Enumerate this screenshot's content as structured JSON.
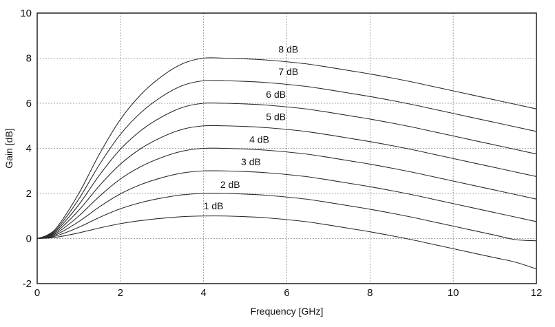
{
  "chart_data": {
    "type": "line",
    "title": "",
    "xlabel": "Frequency [GHz]",
    "ylabel": "Gain [dB]",
    "xlim": [
      0,
      12
    ],
    "ylim": [
      -2,
      10
    ],
    "xticks": [
      0,
      2,
      4,
      6,
      8,
      10,
      12
    ],
    "yticks": [
      -2,
      0,
      2,
      4,
      6,
      8,
      10
    ],
    "xtick_labels": [
      "0",
      "2",
      "4",
      "6",
      "8",
      "10",
      "12"
    ],
    "ytick_labels": [
      "-2",
      "0",
      "2",
      "4",
      "6",
      "8",
      "10"
    ],
    "grid": true,
    "series": [
      {
        "name": "1 dB",
        "label": "1 dB",
        "label_at": [
          4.0,
          1.3
        ],
        "x": [
          0,
          0.25,
          0.5,
          1,
          1.5,
          2,
          2.5,
          3,
          3.5,
          4,
          4.5,
          5,
          5.5,
          6,
          6.5,
          7,
          7.5,
          8,
          8.5,
          9,
          9.5,
          10,
          10.5,
          11,
          11.5,
          12
        ],
        "y": [
          0,
          0.02,
          0.07,
          0.25,
          0.47,
          0.66,
          0.8,
          0.9,
          0.97,
          1.0,
          1.0,
          0.97,
          0.92,
          0.84,
          0.74,
          0.6,
          0.45,
          0.3,
          0.13,
          -0.05,
          -0.25,
          -0.45,
          -0.65,
          -0.85,
          -1.05,
          -1.35
        ]
      },
      {
        "name": "2 dB",
        "label": "2 dB",
        "label_at": [
          4.4,
          2.25
        ],
        "x": [
          0,
          0.25,
          0.5,
          1,
          1.5,
          2,
          2.5,
          3,
          3.5,
          4,
          4.5,
          5,
          5.5,
          6,
          6.5,
          7,
          7.5,
          8,
          8.5,
          9,
          9.5,
          10,
          10.5,
          11,
          11.5,
          12
        ],
        "y": [
          0,
          0.04,
          0.14,
          0.5,
          0.94,
          1.32,
          1.6,
          1.8,
          1.94,
          2.0,
          2.0,
          1.97,
          1.92,
          1.84,
          1.74,
          1.6,
          1.45,
          1.3,
          1.13,
          0.95,
          0.75,
          0.55,
          0.35,
          0.15,
          -0.05,
          -0.1
        ]
      },
      {
        "name": "3 dB",
        "label": "3 dB",
        "label_at": [
          4.9,
          3.25
        ],
        "x": [
          0,
          0.25,
          0.5,
          1,
          1.5,
          2,
          2.5,
          3,
          3.5,
          4,
          4.5,
          5,
          5.5,
          6,
          6.5,
          7,
          7.5,
          8,
          8.5,
          9,
          9.5,
          10,
          10.5,
          11,
          11.5,
          12
        ],
        "y": [
          0,
          0.06,
          0.21,
          0.75,
          1.41,
          1.98,
          2.4,
          2.7,
          2.91,
          3.0,
          3.0,
          2.97,
          2.92,
          2.84,
          2.74,
          2.6,
          2.45,
          2.3,
          2.13,
          1.95,
          1.75,
          1.55,
          1.35,
          1.15,
          0.95,
          0.75
        ]
      },
      {
        "name": "4 dB",
        "label": "4 dB",
        "label_at": [
          5.1,
          4.25
        ],
        "x": [
          0,
          0.25,
          0.5,
          1,
          1.5,
          2,
          2.5,
          3,
          3.5,
          4,
          4.5,
          5,
          5.5,
          6,
          6.5,
          7,
          7.5,
          8,
          8.5,
          9,
          9.5,
          10,
          10.5,
          11,
          11.5,
          12
        ],
        "y": [
          0,
          0.08,
          0.28,
          1.0,
          1.88,
          2.64,
          3.2,
          3.6,
          3.88,
          4.0,
          4.0,
          3.97,
          3.92,
          3.84,
          3.74,
          3.6,
          3.45,
          3.3,
          3.13,
          2.95,
          2.75,
          2.55,
          2.35,
          2.15,
          1.95,
          1.75
        ]
      },
      {
        "name": "5 dB",
        "label": "5 dB",
        "label_at": [
          5.5,
          5.25
        ],
        "x": [
          0,
          0.25,
          0.5,
          1,
          1.5,
          2,
          2.5,
          3,
          3.5,
          4,
          4.5,
          5,
          5.5,
          6,
          6.5,
          7,
          7.5,
          8,
          8.5,
          9,
          9.5,
          10,
          10.5,
          11,
          11.5,
          12
        ],
        "y": [
          0,
          0.1,
          0.35,
          1.25,
          2.35,
          3.3,
          4.0,
          4.5,
          4.85,
          5.0,
          5.0,
          4.97,
          4.92,
          4.84,
          4.74,
          4.6,
          4.45,
          4.3,
          4.13,
          3.95,
          3.75,
          3.55,
          3.35,
          3.15,
          2.95,
          2.75
        ]
      },
      {
        "name": "6 dB",
        "label": "6 dB",
        "label_at": [
          5.5,
          6.25
        ],
        "x": [
          0,
          0.25,
          0.5,
          1,
          1.5,
          2,
          2.5,
          3,
          3.5,
          4,
          4.5,
          5,
          5.5,
          6,
          6.5,
          7,
          7.5,
          8,
          8.5,
          9,
          9.5,
          10,
          10.5,
          11,
          11.5,
          12
        ],
        "y": [
          0,
          0.12,
          0.42,
          1.5,
          2.82,
          3.96,
          4.8,
          5.4,
          5.82,
          6.0,
          6.0,
          5.97,
          5.92,
          5.84,
          5.74,
          5.6,
          5.45,
          5.3,
          5.13,
          4.95,
          4.75,
          4.55,
          4.35,
          4.15,
          3.95,
          3.75
        ]
      },
      {
        "name": "7 dB",
        "label": "7 dB",
        "label_at": [
          5.8,
          7.25
        ],
        "x": [
          0,
          0.25,
          0.5,
          1,
          1.5,
          2,
          2.5,
          3,
          3.5,
          4,
          4.5,
          5,
          5.5,
          6,
          6.5,
          7,
          7.5,
          8,
          8.5,
          9,
          9.5,
          10,
          10.5,
          11,
          11.5,
          12
        ],
        "y": [
          0,
          0.14,
          0.49,
          1.75,
          3.29,
          4.62,
          5.6,
          6.3,
          6.79,
          7.0,
          7.0,
          6.97,
          6.92,
          6.84,
          6.74,
          6.6,
          6.45,
          6.3,
          6.13,
          5.95,
          5.75,
          5.55,
          5.35,
          5.15,
          4.95,
          4.75
        ]
      },
      {
        "name": "8 dB",
        "label": "8 dB",
        "label_at": [
          5.8,
          8.25
        ],
        "x": [
          0,
          0.25,
          0.5,
          1,
          1.5,
          2,
          2.5,
          3,
          3.5,
          4,
          4.5,
          5,
          5.5,
          6,
          6.5,
          7,
          7.5,
          8,
          8.5,
          9,
          9.5,
          10,
          10.5,
          11,
          11.5,
          12
        ],
        "y": [
          0,
          0.16,
          0.56,
          2.0,
          3.76,
          5.28,
          6.4,
          7.2,
          7.76,
          8.0,
          8.0,
          7.97,
          7.92,
          7.84,
          7.74,
          7.6,
          7.45,
          7.3,
          7.13,
          6.95,
          6.75,
          6.55,
          6.35,
          6.15,
          5.95,
          5.75
        ]
      }
    ]
  }
}
